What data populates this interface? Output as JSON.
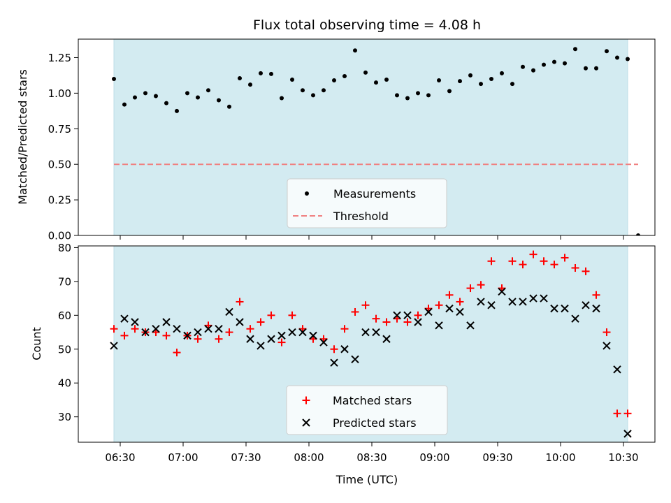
{
  "chart_data": [
    {
      "type": "scatter",
      "title": "Flux total observing time = 4.08 h",
      "ylabel": "Matched/Predicted stars",
      "ylim": [
        0,
        1.38
      ],
      "yticks": [
        0.0,
        0.25,
        0.5,
        0.75,
        1.0,
        1.25
      ],
      "ytick_labels": [
        "0.00",
        "0.25",
        "0.50",
        "0.75",
        "1.00",
        "1.25"
      ],
      "xlim": [
        "06:10",
        "10:45"
      ],
      "shaded_span": [
        "06:27",
        "10:32"
      ],
      "shade_color": "#d3ebf1",
      "legend_position": "lower-center",
      "legend": [
        "Measurements",
        "Threshold"
      ],
      "series": [
        {
          "name": "Measurements",
          "marker": "dot",
          "color": "#000000",
          "x": [
            "06:27",
            "06:32",
            "06:37",
            "06:42",
            "06:47",
            "06:52",
            "06:57",
            "07:02",
            "07:07",
            "07:12",
            "07:17",
            "07:22",
            "07:27",
            "07:32",
            "07:37",
            "07:42",
            "07:47",
            "07:52",
            "07:57",
            "08:02",
            "08:07",
            "08:12",
            "08:17",
            "08:22",
            "08:27",
            "08:32",
            "08:37",
            "08:42",
            "08:47",
            "08:52",
            "08:57",
            "09:02",
            "09:07",
            "09:12",
            "09:17",
            "09:22",
            "09:27",
            "09:32",
            "09:37",
            "09:42",
            "09:47",
            "09:52",
            "09:57",
            "10:02",
            "10:07",
            "10:12",
            "10:17",
            "10:22",
            "10:27",
            "10:32",
            "10:37"
          ],
          "y": [
            1.1,
            0.92,
            0.97,
            1.0,
            0.98,
            0.93,
            0.875,
            1.0,
            0.97,
            1.02,
            0.95,
            0.905,
            1.105,
            1.06,
            1.14,
            1.135,
            0.965,
            1.095,
            1.02,
            0.985,
            1.02,
            1.09,
            1.12,
            1.3,
            1.145,
            1.075,
            1.095,
            0.985,
            0.965,
            1.0,
            0.985,
            1.09,
            1.015,
            1.085,
            1.125,
            1.065,
            1.1,
            1.14,
            1.065,
            1.185,
            1.16,
            1.2,
            1.22,
            1.21,
            1.31,
            1.175,
            1.175,
            1.295,
            1.25,
            1.24,
            0.0
          ]
        },
        {
          "name": "Threshold",
          "style": "dashed",
          "color": "#f08080",
          "x": [
            "06:27",
            "10:37"
          ],
          "y": [
            0.5,
            0.5
          ]
        }
      ]
    },
    {
      "type": "scatter",
      "xlabel": "Time (UTC)",
      "ylabel": "Count",
      "ylim": [
        22.5,
        80.5
      ],
      "yticks": [
        30,
        40,
        50,
        60,
        70,
        80
      ],
      "ytick_labels": [
        "30",
        "40",
        "50",
        "60",
        "70",
        "80"
      ],
      "xticks": [
        "06:30",
        "07:00",
        "07:30",
        "08:00",
        "08:30",
        "09:00",
        "09:30",
        "10:00",
        "10:30"
      ],
      "xtick_labels": [
        "06:30",
        "07:00",
        "07:30",
        "08:00",
        "08:30",
        "09:00",
        "09:30",
        "10:00",
        "10:30"
      ],
      "xlim": [
        "06:10",
        "10:45"
      ],
      "shaded_span": [
        "06:27",
        "10:32"
      ],
      "shade_color": "#d3ebf1",
      "legend_position": "lower-center",
      "legend": [
        "Matched stars",
        "Predicted stars"
      ],
      "series": [
        {
          "name": "Matched stars",
          "marker": "plus",
          "color": "#ff0000",
          "x": [
            "06:27",
            "06:32",
            "06:37",
            "06:42",
            "06:47",
            "06:52",
            "06:57",
            "07:02",
            "07:07",
            "07:12",
            "07:17",
            "07:22",
            "07:27",
            "07:32",
            "07:37",
            "07:42",
            "07:47",
            "07:52",
            "07:57",
            "08:02",
            "08:07",
            "08:12",
            "08:17",
            "08:22",
            "08:27",
            "08:32",
            "08:37",
            "08:42",
            "08:47",
            "08:52",
            "08:57",
            "09:02",
            "09:07",
            "09:12",
            "09:17",
            "09:22",
            "09:27",
            "09:32",
            "09:37",
            "09:42",
            "09:47",
            "09:52",
            "09:57",
            "10:02",
            "10:07",
            "10:12",
            "10:17",
            "10:22",
            "10:27",
            "10:32",
            "10:37"
          ],
          "y": [
            56,
            54,
            56,
            55,
            55,
            54,
            49,
            54,
            53,
            57,
            53,
            55,
            64,
            56,
            58,
            60,
            52,
            60,
            56,
            53,
            53,
            50,
            56,
            61,
            63,
            59,
            58,
            59,
            58,
            60,
            62,
            63,
            66,
            64,
            68,
            69,
            76,
            68,
            76,
            75,
            78,
            76,
            75,
            77,
            74,
            73,
            66,
            55,
            31,
            31,
            null
          ]
        },
        {
          "name": "Predicted stars",
          "marker": "x",
          "color": "#000000",
          "x": [
            "06:27",
            "06:32",
            "06:37",
            "06:42",
            "06:47",
            "06:52",
            "06:57",
            "07:02",
            "07:07",
            "07:12",
            "07:17",
            "07:22",
            "07:27",
            "07:32",
            "07:37",
            "07:42",
            "07:47",
            "07:52",
            "07:57",
            "08:02",
            "08:07",
            "08:12",
            "08:17",
            "08:22",
            "08:27",
            "08:32",
            "08:37",
            "08:42",
            "08:47",
            "08:52",
            "08:57",
            "09:02",
            "09:07",
            "09:12",
            "09:17",
            "09:22",
            "09:27",
            "09:32",
            "09:37",
            "09:42",
            "09:47",
            "09:52",
            "09:57",
            "10:02",
            "10:07",
            "10:12",
            "10:17",
            "10:22",
            "10:27",
            "10:32"
          ],
          "y": [
            51,
            59,
            58,
            55,
            56,
            58,
            56,
            54,
            55,
            56,
            56,
            61,
            58,
            53,
            51,
            53,
            54,
            55,
            55,
            54,
            52,
            46,
            50,
            47,
            55,
            55,
            53,
            60,
            60,
            58,
            61,
            57,
            62,
            61,
            57,
            64,
            63,
            67,
            64,
            64,
            65,
            65,
            62,
            62,
            59,
            63,
            62,
            51,
            44,
            25
          ]
        }
      ]
    }
  ]
}
